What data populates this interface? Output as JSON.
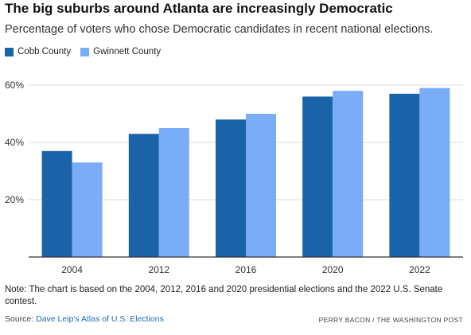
{
  "title": "The big suburbs around Atlanta are increasingly Democratic",
  "subtitle": "Percentage of voters who chose Democratic candidates in recent national elections.",
  "note": "Note: The chart is based on the 2004, 2012, 2016 and 2020 presidential elections and the 2022 U.S. Senate contest.",
  "source": {
    "label": "Source: ",
    "link_text": "Dave Leip's Atlas of U.S. Elections"
  },
  "credit": "PERRY BACON / THE WASHINGTON POST",
  "colors": {
    "cobb": "#1a63a8",
    "gwinnett": "#79aef7",
    "grid": "#dddddd",
    "axis": "#333333"
  },
  "chart_data": {
    "type": "bar",
    "title": "The big suburbs around Atlanta are increasingly Democratic",
    "subtitle": "Percentage of voters who chose Democratic candidates in recent national elections.",
    "categories": [
      "2004",
      "2012",
      "2016",
      "2020",
      "2022"
    ],
    "series": [
      {
        "name": "Cobb County",
        "values": [
          37,
          43,
          48,
          56,
          57
        ]
      },
      {
        "name": "Gwinnett County",
        "values": [
          33,
          45,
          50,
          58,
          59
        ]
      }
    ],
    "y_ticks": [
      20,
      40,
      60
    ],
    "y_tick_labels": [
      "20%",
      "40%",
      "60%"
    ],
    "ylim": [
      0,
      60
    ],
    "grid": true,
    "legend": "top-left",
    "xlabel": "",
    "ylabel": ""
  }
}
